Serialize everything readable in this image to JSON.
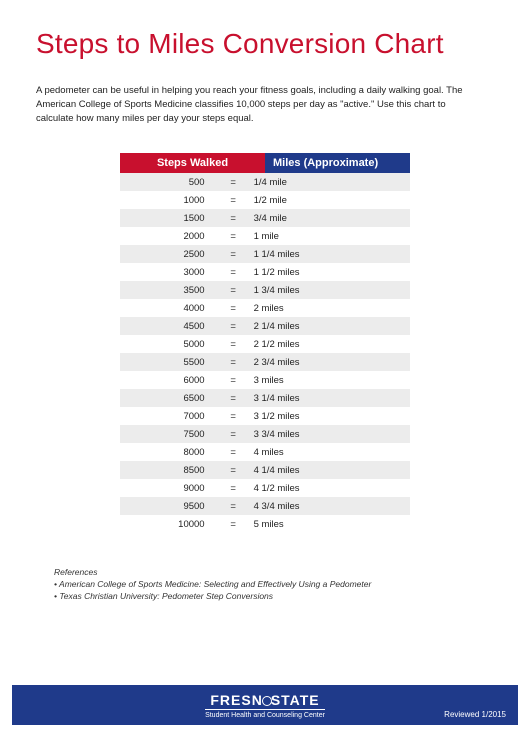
{
  "title": "Steps to Miles Conversion Chart",
  "intro": "A pedometer can be useful in helping you reach your fitness goals, including a daily walking goal. The American College of Sports Medicine classifies 10,000 steps per day as \"active.\" Use this chart to calculate how many miles per day your steps equal.",
  "table": {
    "header_left": "Steps Walked",
    "header_right": "Miles (Approximate)",
    "rows": [
      {
        "steps": "500",
        "eq": "=",
        "miles": "1/4 mile"
      },
      {
        "steps": "1000",
        "eq": "=",
        "miles": "1/2 mile"
      },
      {
        "steps": "1500",
        "eq": "=",
        "miles": "3/4 mile"
      },
      {
        "steps": "2000",
        "eq": "=",
        "miles": "1 mile"
      },
      {
        "steps": "2500",
        "eq": "=",
        "miles": "1 1/4 miles"
      },
      {
        "steps": "3000",
        "eq": "=",
        "miles": "1 1/2 miles"
      },
      {
        "steps": "3500",
        "eq": "=",
        "miles": "1 3/4 miles"
      },
      {
        "steps": "4000",
        "eq": "=",
        "miles": "2 miles"
      },
      {
        "steps": "4500",
        "eq": "=",
        "miles": "2 1/4 miles"
      },
      {
        "steps": "5000",
        "eq": "=",
        "miles": "2 1/2 miles"
      },
      {
        "steps": "5500",
        "eq": "=",
        "miles": "2 3/4 miles"
      },
      {
        "steps": "6000",
        "eq": "=",
        "miles": "3 miles"
      },
      {
        "steps": "6500",
        "eq": "=",
        "miles": "3 1/4 miles"
      },
      {
        "steps": "7000",
        "eq": "=",
        "miles": "3 1/2 miles"
      },
      {
        "steps": "7500",
        "eq": "=",
        "miles": "3 3/4 miles"
      },
      {
        "steps": "8000",
        "eq": "=",
        "miles": "4 miles"
      },
      {
        "steps": "8500",
        "eq": "=",
        "miles": "4 1/4 miles"
      },
      {
        "steps": "9000",
        "eq": "=",
        "miles": "4 1/2 miles"
      },
      {
        "steps": "9500",
        "eq": "=",
        "miles": "4 3/4 miles"
      },
      {
        "steps": "10000",
        "eq": "=",
        "miles": "5 miles"
      }
    ]
  },
  "references": {
    "title": "References",
    "items": [
      "American College of Sports Medicine: Selecting and Effectively Using a Pedometer",
      "Texas Christian University: Pedometer Step Conversions"
    ]
  },
  "footer": {
    "brand_left": "FRESN",
    "brand_right": "STATE",
    "subbrand": "Student Health and Counseling Center",
    "reviewed": "Reviewed  1/2015"
  },
  "colors": {
    "accent_red": "#c8102e",
    "accent_blue": "#1f3a8a",
    "row_alt": "#ececec"
  }
}
